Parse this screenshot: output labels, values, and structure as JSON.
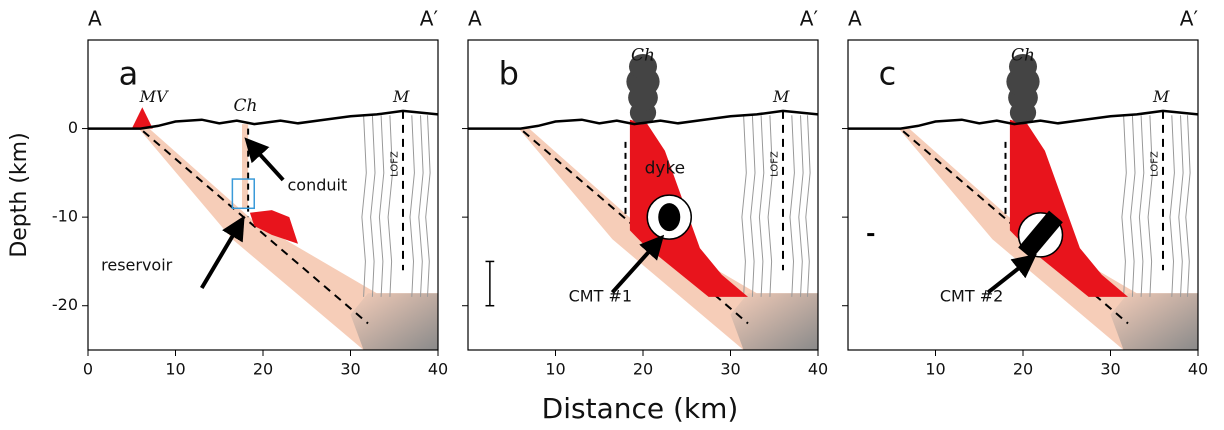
{
  "y_axis_label": "Depth (km)",
  "x_axis_label": "Distance (km)",
  "xlim": [
    0,
    40
  ],
  "ylim": [
    -25,
    10
  ],
  "yticks": [
    0,
    -10,
    -20
  ],
  "panels": [
    {
      "letter": "a",
      "left_label": "A",
      "right_label": "A′",
      "xticks": [
        0,
        10,
        20,
        30,
        40
      ],
      "annotations": {
        "volcano": "MV",
        "crater": "Ch",
        "fault_site": "M",
        "fault_zone": "LOFZ",
        "conduit": "conduit",
        "reservoir": "reservoir"
      }
    },
    {
      "letter": "b",
      "left_label": "A",
      "right_label": "A′",
      "xticks": [
        10,
        20,
        30,
        40
      ],
      "annotations": {
        "crater": "Ch",
        "fault_site": "M",
        "fault_zone": "LOFZ",
        "dyke": "dyke",
        "cmt": "CMT #1"
      }
    },
    {
      "letter": "c",
      "left_label": "A",
      "right_label": "A′",
      "xticks": [
        10,
        20,
        30,
        40
      ],
      "annotations": {
        "crater": "Ch",
        "fault_site": "M",
        "fault_zone": "LOFZ",
        "cmt": "CMT #2"
      }
    }
  ]
}
